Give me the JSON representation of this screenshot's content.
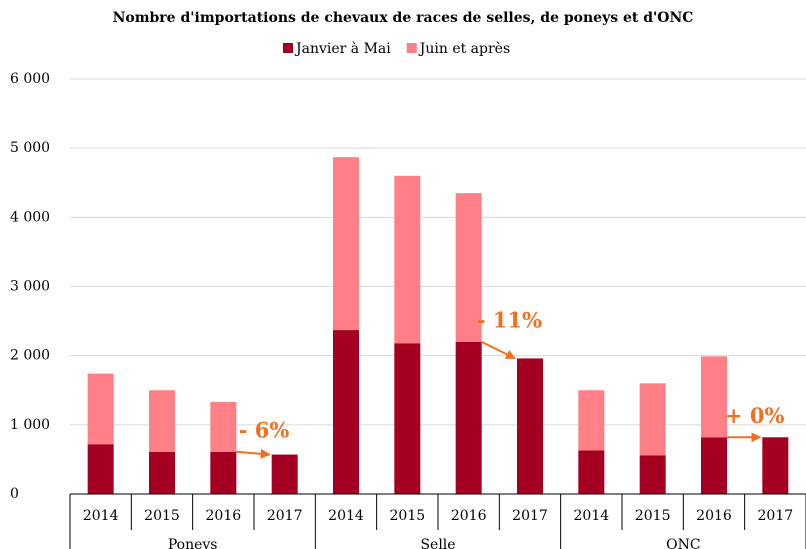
{
  "chart_data": {
    "type": "stacked-bar",
    "title": "Nombre d'importations de chevaux de races de selles, de poneys et d'ONC",
    "categories": [
      "2014",
      "2015",
      "2016",
      "2017",
      "2014",
      "2015",
      "2016",
      "2017",
      "2014",
      "2015",
      "2016",
      "2017"
    ],
    "groups": [
      "Poneys",
      "Selle",
      "ONC"
    ],
    "series": [
      {
        "name": "Janvier à Mai",
        "color": "#a50021",
        "values": [
          720,
          610,
          610,
          570,
          2370,
          2180,
          2200,
          1960,
          630,
          560,
          820,
          820
        ]
      },
      {
        "name": "Juin et après",
        "color": "#ff7f86",
        "values": [
          1020,
          890,
          720,
          null,
          2500,
          2420,
          2150,
          null,
          870,
          1040,
          1170,
          null
        ]
      }
    ],
    "annotations": [
      "- 6%",
      "- 11%",
      "+ 0%"
    ],
    "annotation_color": "#f07020",
    "ylim": [
      0,
      6000
    ],
    "yticks": [
      0,
      {
        "value": 1000,
        "label": "1 000"
      },
      {
        "value": 2000,
        "label": "2 000"
      },
      {
        "value": 3000,
        "label": "3 000"
      },
      {
        "value": 4000,
        "label": "4 000"
      },
      {
        "value": 5000,
        "label": "5 000"
      },
      {
        "value": 6000,
        "label": "6 000"
      }
    ],
    "grid": true
  }
}
